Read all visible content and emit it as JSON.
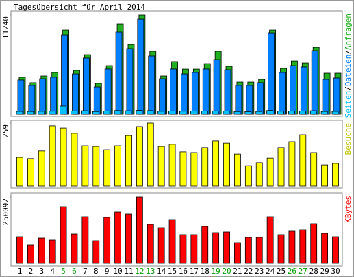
{
  "chart_data": [
    {
      "type": "bar",
      "title": "Tagesübersicht für April 2014",
      "legend_separator": "/",
      "series": [
        {
          "name": "Seiten",
          "color": "#00c0ff",
          "values": [
            310,
            300,
            320,
            330,
            930,
            350,
            380,
            290,
            340,
            400,
            380,
            420,
            390,
            320,
            350,
            330,
            340,
            350,
            360,
            340,
            290,
            280,
            300,
            410,
            330,
            350,
            340,
            380,
            300,
            310
          ]
        },
        {
          "name": "Dateien",
          "color": "#0080ff",
          "values": [
            3880,
            3260,
            4030,
            4190,
            8990,
            4570,
            6360,
            3100,
            5120,
            9300,
            7440,
            10770,
            6590,
            4030,
            5120,
            4570,
            4730,
            5120,
            6200,
            5040,
            3260,
            3260,
            3570,
            9220,
            4730,
            5500,
            5350,
            7210,
            3950,
            4110
          ]
        },
        {
          "name": "Anfragen",
          "color": "#20b020",
          "values": [
            4190,
            3570,
            4340,
            4730,
            9530,
            4960,
            6740,
            3490,
            5500,
            10230,
            7900,
            11240,
            7130,
            4340,
            5970,
            5110,
            5110,
            5730,
            7130,
            5420,
            3640,
            3640,
            3950,
            9530,
            5190,
            6040,
            5810,
            7590,
            4650,
            4650
          ]
        }
      ],
      "ylim": [
        0,
        11240
      ],
      "yticks": [
        11240
      ]
    },
    {
      "type": "bar",
      "series": [
        {
          "name": "Besuche",
          "color": "#ffff00",
          "values": [
            118,
            113,
            144,
            248,
            239,
            217,
            166,
            163,
            149,
            166,
            208,
            245,
            259,
            163,
            172,
            141,
            138,
            158,
            186,
            177,
            132,
            84,
            96,
            115,
            158,
            183,
            211,
            138,
            87,
            93
          ]
        }
      ],
      "legend_color": "#c0c000",
      "ylim": [
        0,
        259
      ],
      "yticks": [
        259
      ]
    },
    {
      "type": "bar",
      "series": [
        {
          "name": "KBytes",
          "color": "#ff0000",
          "values": [
            100540,
            69600,
            95390,
            87650,
            213980,
            110860,
            175310,
            85080,
            172730,
            193350,
            185620,
            250092,
            146950,
            134060,
            165000,
            108280,
            108280,
            139220,
            116010,
            118590,
            77340,
            97960,
            97960,
            175310,
            108280,
            121170,
            126330,
            149530,
            113430,
            100540
          ]
        }
      ],
      "legend_color": "#ff0000",
      "ylim": [
        0,
        250092
      ],
      "yticks": [
        250092
      ],
      "categories": [
        "1",
        "2",
        "3",
        "4",
        "5",
        "6",
        "7",
        "8",
        "9",
        "10",
        "11",
        "12",
        "13",
        "14",
        "15",
        "16",
        "17",
        "18",
        "19",
        "20",
        "21",
        "22",
        "23",
        "24",
        "25",
        "26",
        "27",
        "28",
        "29",
        "30"
      ],
      "category_colors": [
        "#000000",
        "#000000",
        "#000000",
        "#000000",
        "#00a000",
        "#00a000",
        "#000000",
        "#000000",
        "#000000",
        "#000000",
        "#000000",
        "#00a000",
        "#00a000",
        "#000000",
        "#000000",
        "#000000",
        "#000000",
        "#000000",
        "#00a000",
        "#00a000",
        "#000000",
        "#000000",
        "#000000",
        "#000000",
        "#000000",
        "#00a000",
        "#00a000",
        "#000000",
        "#000000",
        "#000000"
      ]
    }
  ]
}
